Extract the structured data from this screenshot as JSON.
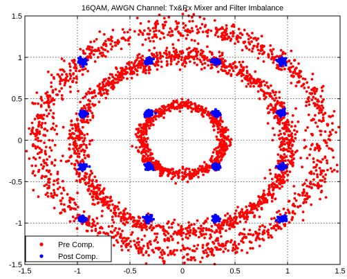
{
  "chart_data": {
    "type": "scatter",
    "title": "16QAM, AWGN Channel: Tx&Rx Mixer and Filter Imbalance",
    "xlabel": "",
    "ylabel": "",
    "xlim": [
      -1.5,
      1.5
    ],
    "ylim": [
      -1.5,
      1.5
    ],
    "grid": true,
    "legend_placement": "bottom-left",
    "x_ticks": [
      "-1.5",
      "-1",
      "-0.5",
      "0",
      "0.5",
      "1",
      "1.5"
    ],
    "y_ticks": [
      "1.5",
      "1",
      "0.5",
      "0",
      "-0.5",
      "-1",
      "-1.5"
    ],
    "colors": {
      "pre": "#ff0000",
      "post": "#0000ff"
    },
    "series": [
      {
        "name": "Pre Comp.",
        "description_rings": [
          {
            "center": [
              0.0,
              0.0
            ],
            "rx": 0.39,
            "ry": 0.42
          },
          {
            "center": [
              0.0,
              -0.05
            ],
            "rx": 1.0,
            "ry": 1.05
          },
          {
            "center": [
              0.0,
              0.0
            ],
            "rx": 1.35,
            "ry": 1.35
          }
        ]
      },
      {
        "name": "Post Comp.",
        "points": [
          [
            -0.95,
            0.95
          ],
          [
            -0.32,
            0.95
          ],
          [
            0.32,
            0.95
          ],
          [
            0.95,
            0.95
          ],
          [
            -0.95,
            0.32
          ],
          [
            -0.32,
            0.32
          ],
          [
            0.32,
            0.32
          ],
          [
            0.95,
            0.32
          ],
          [
            -0.95,
            -0.32
          ],
          [
            -0.32,
            -0.32
          ],
          [
            0.32,
            -0.32
          ],
          [
            0.95,
            -0.32
          ],
          [
            -0.95,
            -0.95
          ],
          [
            -0.32,
            -0.95
          ],
          [
            0.32,
            -0.95
          ],
          [
            0.95,
            -0.95
          ]
        ]
      }
    ]
  }
}
